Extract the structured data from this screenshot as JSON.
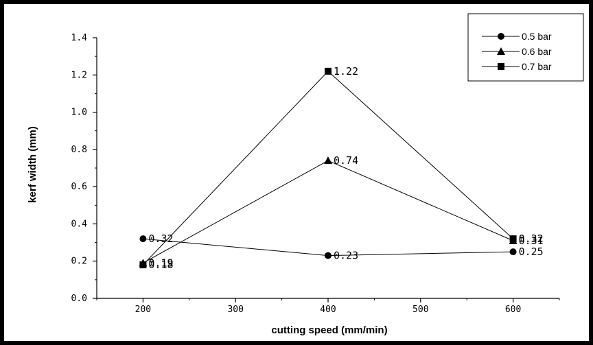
{
  "chart_data": {
    "type": "line",
    "xlabel": "cutting speed (mm/min)",
    "ylabel": "kerf width (mm)",
    "xlim": [
      150,
      650
    ],
    "ylim": [
      0.0,
      1.4
    ],
    "x_ticks": [
      200,
      300,
      400,
      500,
      600
    ],
    "x_tick_labels": [
      "200",
      "300",
      "400",
      "500",
      "600"
    ],
    "y_ticks": [
      0.0,
      0.2,
      0.4,
      0.6,
      0.8,
      1.0,
      1.2,
      1.4
    ],
    "y_tick_labels": [
      "0.0",
      "0.2",
      "0.4",
      "0.6",
      "0.8",
      "1.0",
      "1.2",
      "1.4"
    ],
    "x": [
      200,
      400,
      600
    ],
    "grid": false,
    "legend_position": "top-right",
    "series": [
      {
        "name": "0.5 bar",
        "marker": "circle",
        "values": [
          0.32,
          0.23,
          0.25
        ],
        "labels": [
          "0.32",
          "0.23",
          "0.25"
        ]
      },
      {
        "name": "0.6 bar",
        "marker": "triangle",
        "values": [
          0.19,
          0.74,
          0.31
        ],
        "labels": [
          "0.19",
          "0.74",
          "0.31"
        ]
      },
      {
        "name": "0.7 bar",
        "marker": "square",
        "values": [
          0.18,
          1.22,
          0.32
        ],
        "labels": [
          "0.18",
          "1.22",
          "0.32"
        ]
      }
    ],
    "colors": {
      "line": "#000000",
      "marker": "#000000"
    }
  }
}
